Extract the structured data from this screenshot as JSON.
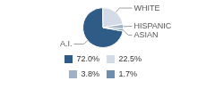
{
  "chart_data": {
    "type": "pie",
    "categories": [
      "A.I.",
      "WHITE",
      "HISPANIC",
      "ASIAN"
    ],
    "values": [
      72.0,
      22.5,
      3.8,
      1.7
    ],
    "value_labels": [
      "72.0%",
      "22.5%",
      "3.8%",
      "1.7%"
    ],
    "colors": [
      "#2e5c86",
      "#d3dce6",
      "#9fb1c4",
      "#6d8fae"
    ],
    "legend": "bottom"
  }
}
